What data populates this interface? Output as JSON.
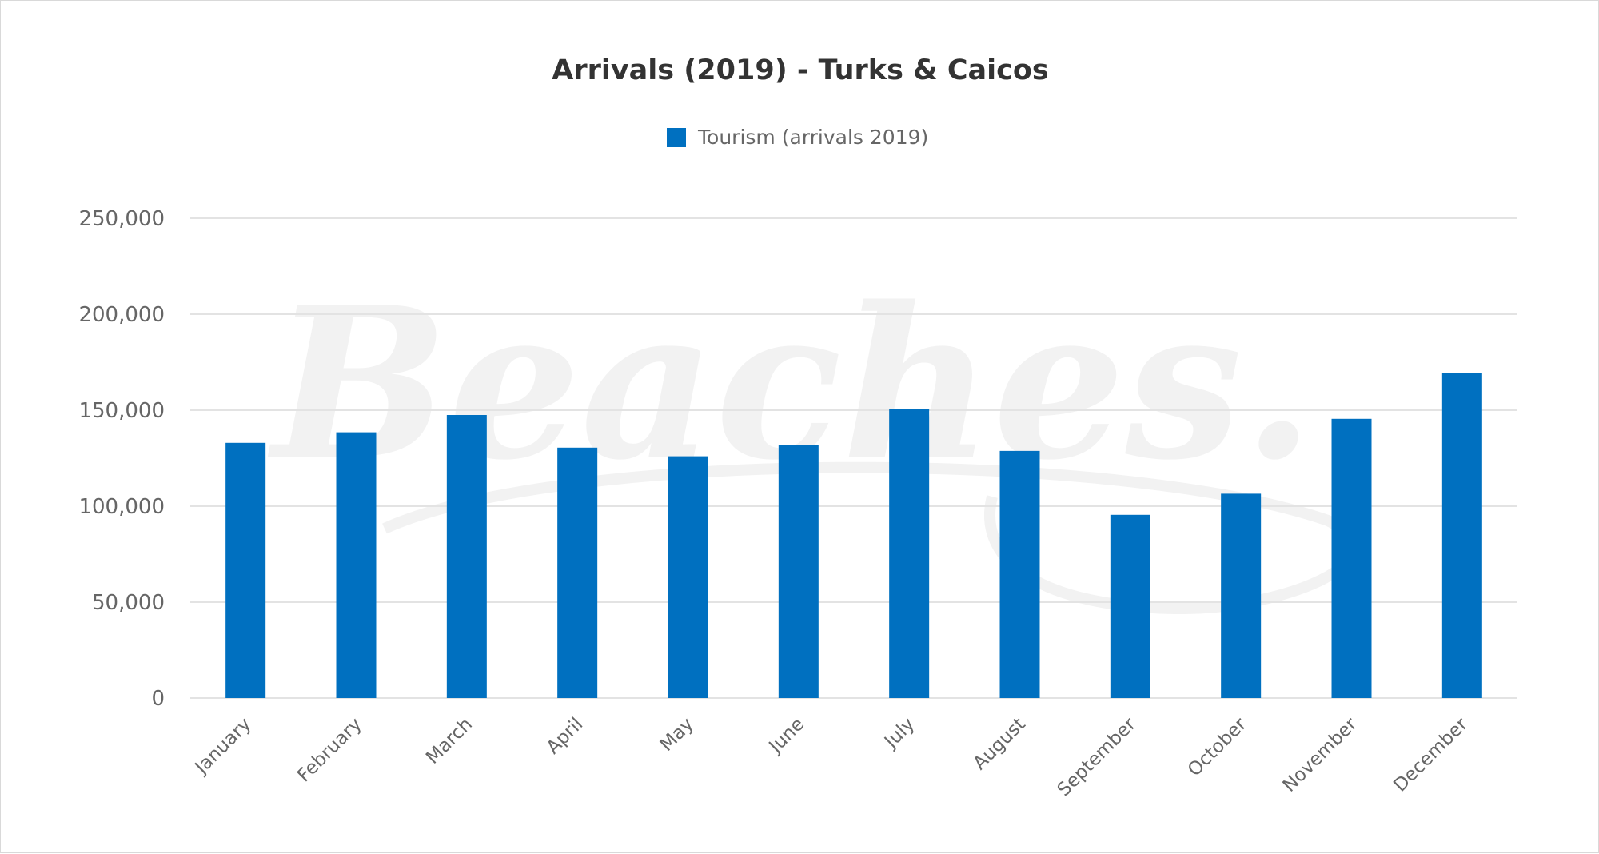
{
  "chart_data": {
    "type": "bar",
    "title": "Arrivals (2019) - Turks & Caicos",
    "watermark": "Beaches.",
    "categories": [
      "January",
      "February",
      "March",
      "April",
      "May",
      "June",
      "July",
      "August",
      "September",
      "October",
      "November",
      "December"
    ],
    "series": [
      {
        "name": "Tourism (arrivals 2019)",
        "color": "#0070c0",
        "values": [
          133000,
          138500,
          147500,
          130500,
          126000,
          132000,
          150500,
          128800,
          95500,
          106500,
          145500,
          169500
        ]
      }
    ],
    "ylim": [
      0,
      250000
    ],
    "yticks": [
      0,
      50000,
      100000,
      150000,
      200000,
      250000
    ],
    "ytick_labels": [
      "0",
      "50,000",
      "100,000",
      "150,000",
      "200,000",
      "250,000"
    ],
    "grid": true,
    "legend": "top-center",
    "xlabel": "",
    "ylabel": ""
  }
}
